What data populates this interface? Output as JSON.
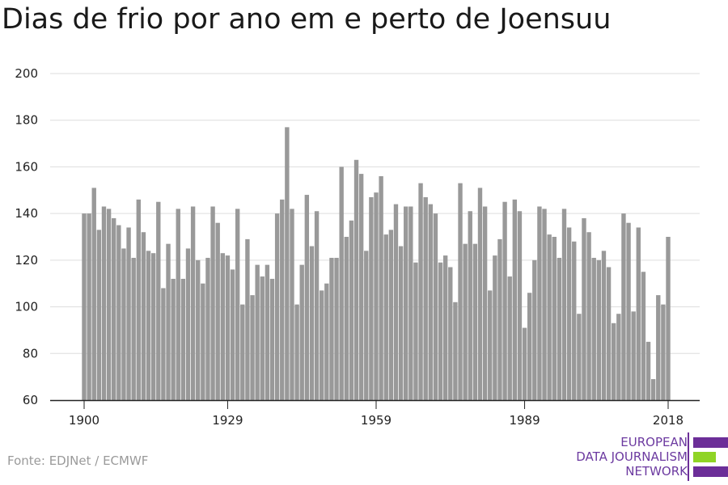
{
  "title": "Dias de frio por ano em e perto de Joensuu",
  "source": "Fonte: EDJNet / ECMWF",
  "logo": {
    "lines": [
      "EUROPEAN",
      "DATA JOURNALISM",
      "NETWORK"
    ],
    "colors": [
      "#6c2e98",
      "#8fd425",
      "#6c2e98"
    ]
  },
  "chart_data": {
    "type": "bar",
    "title": "Dias de frio por ano em e perto de Joensuu",
    "xlabel": "",
    "ylabel": "",
    "ylim": [
      60,
      200
    ],
    "yticks": [
      60,
      80,
      100,
      120,
      140,
      160,
      180,
      200
    ],
    "xticks": [
      1900,
      1929,
      1959,
      1989,
      2018
    ],
    "grid": true,
    "bar_color": "#999999",
    "x": [
      1900,
      1901,
      1902,
      1903,
      1904,
      1905,
      1906,
      1907,
      1908,
      1909,
      1910,
      1911,
      1912,
      1913,
      1914,
      1915,
      1916,
      1917,
      1918,
      1919,
      1920,
      1921,
      1922,
      1923,
      1924,
      1925,
      1926,
      1927,
      1928,
      1929,
      1930,
      1931,
      1932,
      1933,
      1934,
      1935,
      1936,
      1937,
      1938,
      1939,
      1940,
      1941,
      1942,
      1943,
      1944,
      1945,
      1946,
      1947,
      1948,
      1949,
      1950,
      1951,
      1952,
      1953,
      1954,
      1955,
      1956,
      1957,
      1958,
      1959,
      1960,
      1961,
      1962,
      1963,
      1964,
      1965,
      1966,
      1967,
      1968,
      1969,
      1970,
      1971,
      1972,
      1973,
      1974,
      1975,
      1976,
      1977,
      1978,
      1979,
      1980,
      1981,
      1982,
      1983,
      1984,
      1985,
      1986,
      1987,
      1988,
      1989,
      1990,
      1991,
      1992,
      1993,
      1994,
      1995,
      1996,
      1997,
      1998,
      1999,
      2000,
      2001,
      2002,
      2003,
      2004,
      2005,
      2006,
      2007,
      2008,
      2009,
      2010,
      2011,
      2012,
      2013,
      2014,
      2015,
      2016,
      2017,
      2018
    ],
    "values": [
      140,
      140,
      151,
      133,
      143,
      142,
      138,
      135,
      125,
      134,
      121,
      146,
      132,
      124,
      123,
      145,
      108,
      127,
      112,
      142,
      112,
      125,
      143,
      120,
      110,
      121,
      143,
      136,
      123,
      122,
      116,
      142,
      101,
      129,
      105,
      118,
      113,
      118,
      112,
      140,
      146,
      177,
      142,
      101,
      118,
      148,
      126,
      141,
      107,
      110,
      121,
      121,
      160,
      130,
      137,
      163,
      157,
      124,
      147,
      149,
      156,
      131,
      133,
      144,
      126,
      143,
      143,
      119,
      153,
      147,
      144,
      140,
      119,
      122,
      117,
      102,
      153,
      127,
      141,
      127,
      151,
      143,
      107,
      122,
      129,
      145,
      113,
      146,
      141,
      91,
      106,
      120,
      143,
      142,
      131,
      130,
      121,
      142,
      134,
      128,
      97,
      138,
      132,
      121,
      120,
      124,
      117,
      93,
      97,
      140,
      136,
      98,
      134,
      115,
      85,
      69,
      105,
      101,
      130
    ]
  }
}
